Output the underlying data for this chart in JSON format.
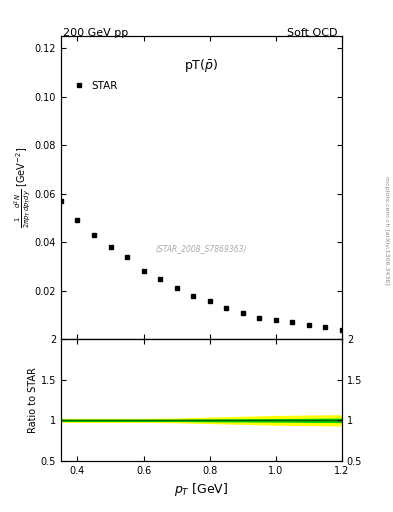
{
  "title_left": "200 GeV pp",
  "title_right": "Soft QCD",
  "plot_title": "pT(ρ̅)",
  "legend_label": "STAR",
  "watermark": "(STAR_2008_S7869363)",
  "sidebar_text": "mcplots.cern.ch [arXiv:1306.3436]",
  "star_x": [
    0.35,
    0.4,
    0.45,
    0.5,
    0.55,
    0.6,
    0.65,
    0.7,
    0.75,
    0.8,
    0.85,
    0.9,
    0.95,
    1.0,
    1.05,
    1.1,
    1.15,
    1.2
  ],
  "star_y": [
    0.057,
    0.049,
    0.043,
    0.038,
    0.034,
    0.028,
    0.025,
    0.021,
    0.018,
    0.016,
    0.013,
    0.011,
    0.009,
    0.008,
    0.007,
    0.006,
    0.005,
    0.004
  ],
  "ratio_x": [
    0.35,
    0.4,
    0.5,
    0.6,
    0.7,
    0.8,
    0.9,
    1.0,
    1.1,
    1.2
  ],
  "ratio_y": [
    1.0,
    1.0,
    1.0,
    1.0,
    1.0,
    1.0,
    1.0,
    1.0,
    1.0,
    1.0
  ],
  "ratio_green_upper": [
    1.015,
    1.015,
    1.015,
    1.015,
    1.015,
    1.018,
    1.02,
    1.022,
    1.025,
    1.028
  ],
  "ratio_green_lower": [
    0.985,
    0.985,
    0.985,
    0.985,
    0.985,
    0.982,
    0.98,
    0.978,
    0.975,
    0.972
  ],
  "ratio_yellow_upper": [
    1.025,
    1.025,
    1.025,
    1.025,
    1.03,
    1.04,
    1.05,
    1.06,
    1.065,
    1.07
  ],
  "ratio_yellow_lower": [
    0.975,
    0.975,
    0.975,
    0.975,
    0.97,
    0.96,
    0.95,
    0.94,
    0.935,
    0.93
  ],
  "xlim": [
    0.35,
    1.2
  ],
  "ylim_main": [
    0.0,
    0.125
  ],
  "ylim_ratio": [
    0.5,
    2.0
  ],
  "yticks_main": [
    0.02,
    0.04,
    0.06,
    0.08,
    0.1,
    0.12
  ],
  "yticks_ratio": [
    0.5,
    1.0,
    1.5,
    2.0
  ],
  "bg_color": "#ffffff",
  "marker_color": "#000000",
  "green_color": "#00cc00",
  "yellow_color": "#ffff00",
  "ratio_line_color": "#006600"
}
